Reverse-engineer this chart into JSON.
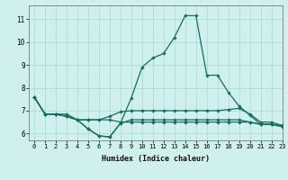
{
  "background_color": "#cff0ec",
  "grid_color": "#aaddd8",
  "line_color": "#1a6b60",
  "xlabel": "Humidex (Indice chaleur)",
  "xlim": [
    -0.5,
    23
  ],
  "ylim": [
    5.7,
    11.6
  ],
  "yticks": [
    6,
    7,
    8,
    9,
    10,
    11
  ],
  "xticks": [
    0,
    1,
    2,
    3,
    4,
    5,
    6,
    7,
    8,
    9,
    10,
    11,
    12,
    13,
    14,
    15,
    16,
    17,
    18,
    19,
    20,
    21,
    22,
    23
  ],
  "series": [
    [
      7.6,
      6.85,
      6.85,
      6.85,
      6.6,
      6.2,
      5.9,
      5.85,
      6.45,
      7.55,
      8.9,
      9.3,
      9.5,
      10.2,
      11.15,
      11.15,
      8.55,
      8.55,
      7.8,
      7.2,
      6.8,
      6.4,
      6.4,
      6.3
    ],
    [
      7.6,
      6.85,
      6.85,
      6.75,
      6.6,
      6.6,
      6.6,
      6.75,
      6.95,
      7.0,
      7.0,
      7.0,
      7.0,
      7.0,
      7.0,
      7.0,
      7.0,
      7.0,
      7.05,
      7.1,
      6.85,
      6.5,
      6.5,
      6.35
    ],
    [
      7.6,
      6.85,
      6.85,
      6.75,
      6.6,
      6.6,
      6.6,
      6.6,
      6.5,
      6.5,
      6.5,
      6.5,
      6.5,
      6.5,
      6.5,
      6.5,
      6.5,
      6.5,
      6.5,
      6.5,
      6.5,
      6.4,
      6.4,
      6.35
    ],
    [
      7.6,
      6.85,
      6.85,
      6.75,
      6.6,
      6.2,
      5.9,
      5.85,
      6.45,
      6.6,
      6.6,
      6.6,
      6.6,
      6.6,
      6.6,
      6.6,
      6.6,
      6.6,
      6.6,
      6.6,
      6.5,
      6.4,
      6.4,
      6.3
    ]
  ]
}
